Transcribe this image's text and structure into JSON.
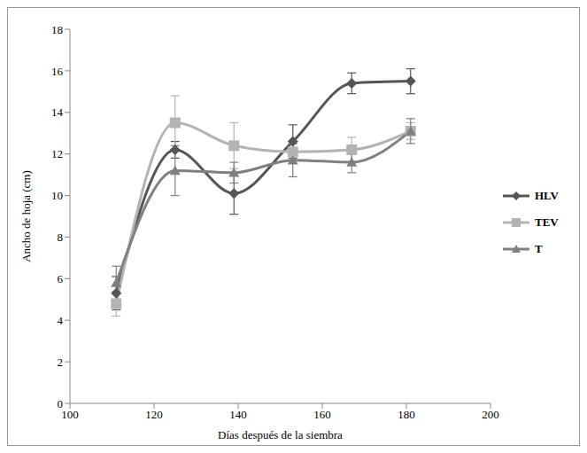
{
  "chart_data": {
    "type": "line",
    "x_label": "Días después de la siembra",
    "y_label": "Ancho de hoja (cm)",
    "xlim": [
      100,
      200
    ],
    "xticks": [
      100,
      120,
      140,
      160,
      180,
      200
    ],
    "ylim": [
      0,
      18
    ],
    "yticks": [
      0,
      2,
      4,
      6,
      8,
      10,
      12,
      14,
      16,
      18
    ],
    "x": [
      111,
      125,
      139,
      153,
      167,
      181
    ],
    "legend": "right",
    "series": [
      {
        "name": "HLV",
        "color": "#555555",
        "marker": "diamond",
        "values": [
          5.3,
          12.2,
          10.1,
          12.6,
          15.4,
          15.5
        ],
        "errors": [
          0.8,
          0.4,
          1.0,
          0.8,
          0.5,
          0.6
        ]
      },
      {
        "name": "TEV",
        "color": "#b3b3b3",
        "marker": "square",
        "values": [
          4.8,
          13.5,
          12.4,
          12.1,
          12.2,
          13.1
        ],
        "errors": [
          0.6,
          1.3,
          1.1,
          0.4,
          0.6,
          0.4
        ]
      },
      {
        "name": "T",
        "color": "#808080",
        "marker": "triangle",
        "values": [
          5.8,
          11.2,
          11.1,
          11.7,
          11.6,
          13.1
        ],
        "errors": [
          0.8,
          1.2,
          0.5,
          0.8,
          0.5,
          0.6
        ]
      }
    ]
  }
}
